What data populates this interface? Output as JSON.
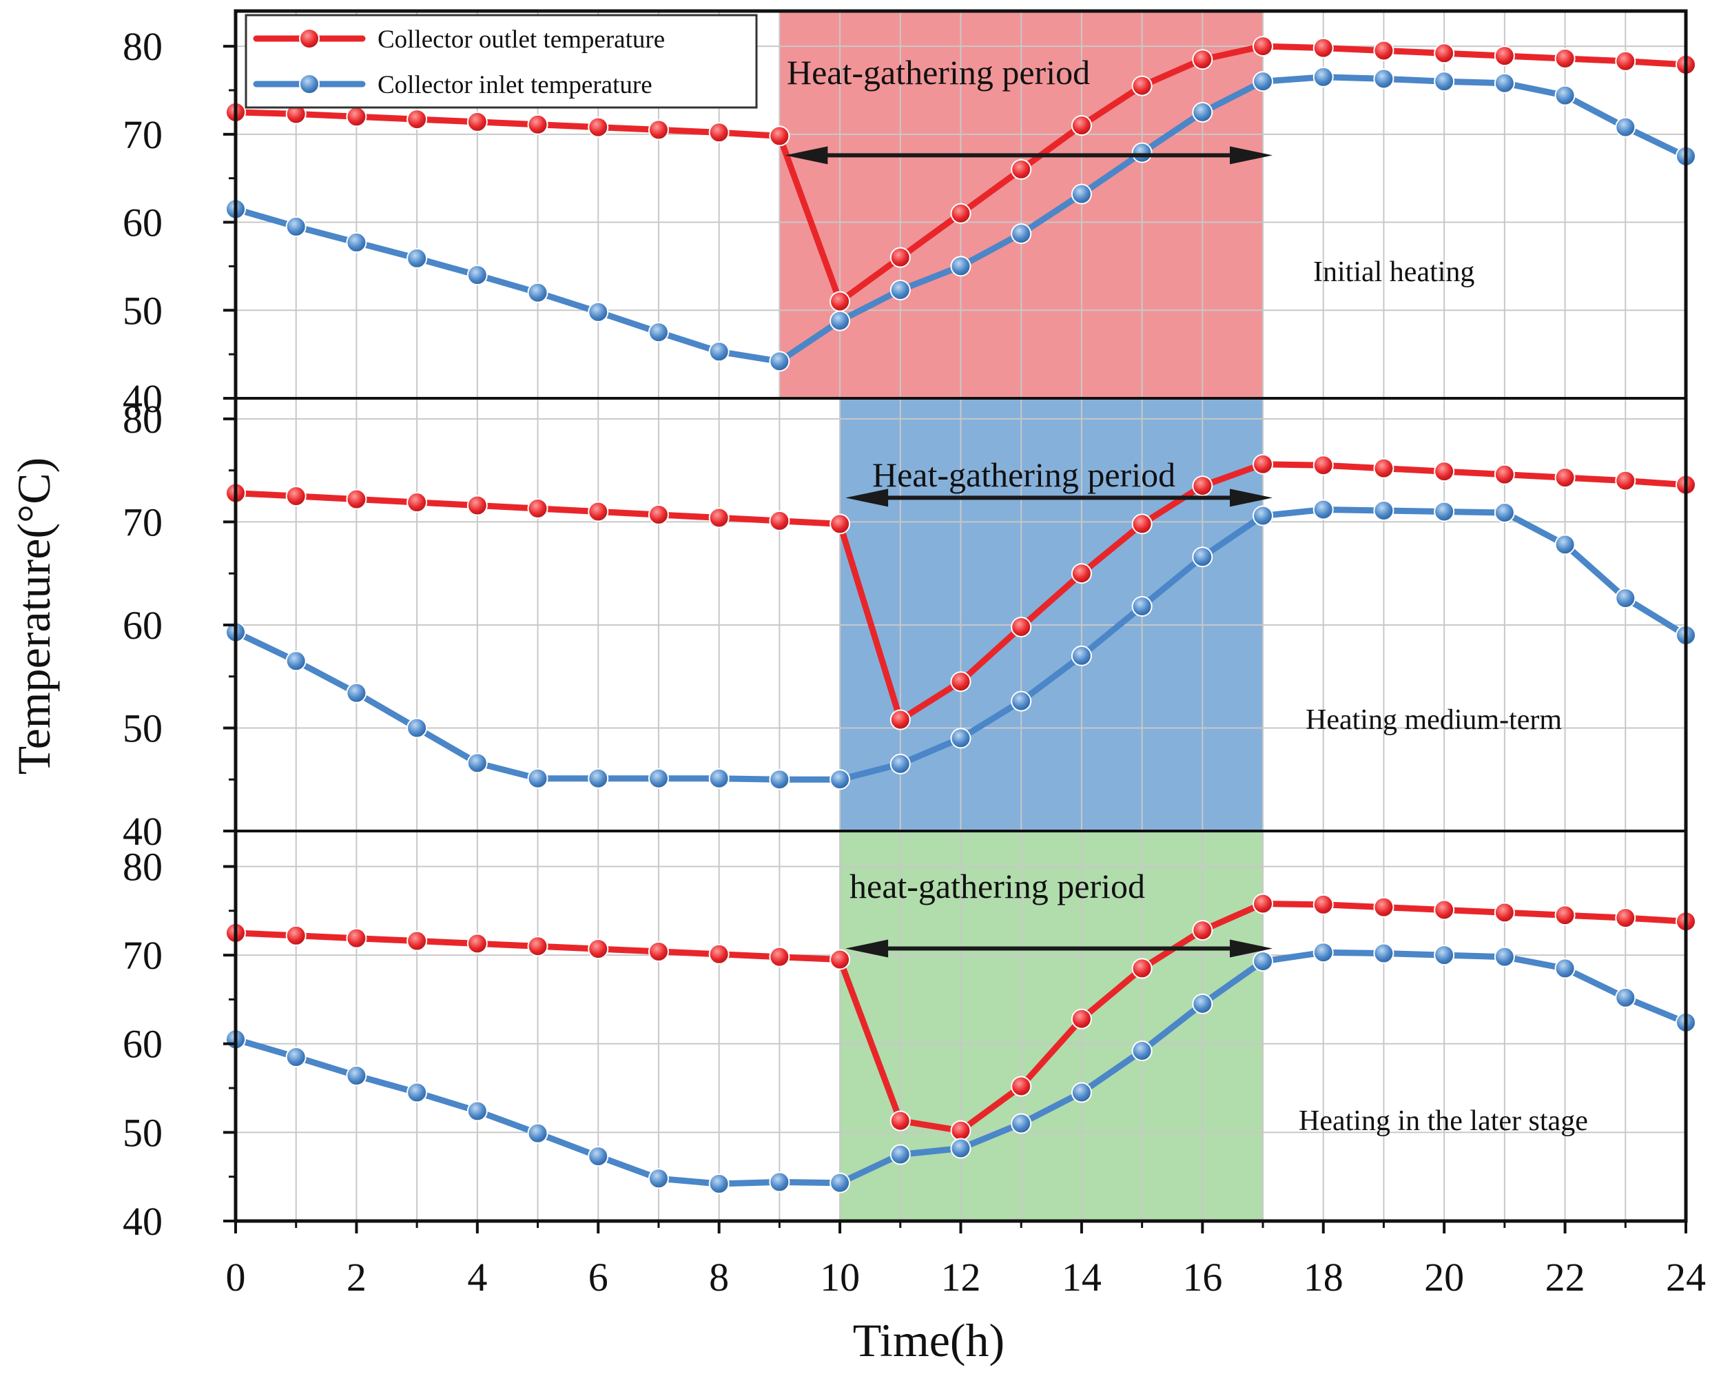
{
  "chart_data": {
    "type": "line",
    "xlabel": "Time(h)",
    "ylabel": "Temperature(°C)",
    "xlim": [
      0,
      24
    ],
    "x_ticks": [
      "0",
      "2",
      "4",
      "6",
      "8",
      "10",
      "12",
      "14",
      "16",
      "18",
      "20",
      "22",
      "24"
    ],
    "grid": true,
    "legend": {
      "placement": "top-left",
      "entries": [
        {
          "name": "Collector outlet temperature",
          "color": "#e8262a"
        },
        {
          "name": "Collector inlet temperature",
          "color": "#4a86c8"
        }
      ]
    },
    "x": [
      0,
      1,
      2,
      3,
      4,
      5,
      6,
      7,
      8,
      9,
      10,
      11,
      12,
      13,
      14,
      15,
      16,
      17,
      18,
      19,
      20,
      21,
      22,
      23,
      24
    ],
    "panels": [
      {
        "label": "Initial heating",
        "ylim": [
          40,
          84
        ],
        "y_ticks": [
          "40",
          "50",
          "60",
          "70",
          "80"
        ],
        "period": {
          "start": 9,
          "end": 17,
          "label": "Heat-gathering period",
          "color": "#ee7d80"
        },
        "series": [
          {
            "name": "Collector outlet temperature",
            "values": [
              72.5,
              72.3,
              72.0,
              71.7,
              71.4,
              71.1,
              70.8,
              70.5,
              70.2,
              69.8,
              51.0,
              56.0,
              61.0,
              66.0,
              71.0,
              75.5,
              78.5,
              80.0,
              79.8,
              79.5,
              79.2,
              78.9,
              78.6,
              78.3,
              77.9
            ]
          },
          {
            "name": "Collector inlet temperature",
            "values": [
              61.5,
              59.5,
              57.7,
              55.9,
              54.0,
              52.0,
              49.8,
              47.5,
              45.3,
              44.2,
              48.8,
              52.3,
              55.0,
              58.7,
              63.2,
              67.9,
              72.5,
              76.0,
              76.5,
              76.3,
              76.0,
              75.8,
              74.4,
              70.8,
              67.5
            ]
          }
        ]
      },
      {
        "label": "Heating medium-term",
        "ylim": [
          40,
          82
        ],
        "y_ticks": [
          "40",
          "50",
          "60",
          "70",
          "80"
        ],
        "period": {
          "start": 10,
          "end": 17,
          "label": "Heat-gathering period",
          "color": "#6a9fd2"
        },
        "series": [
          {
            "name": "Collector outlet temperature",
            "values": [
              72.8,
              72.5,
              72.2,
              71.9,
              71.6,
              71.3,
              71.0,
              70.7,
              70.4,
              70.1,
              69.8,
              50.8,
              54.5,
              59.8,
              65.0,
              69.8,
              73.5,
              75.6,
              75.5,
              75.2,
              74.9,
              74.6,
              74.3,
              74.0,
              73.6
            ]
          },
          {
            "name": "Collector inlet temperature",
            "values": [
              59.3,
              56.5,
              53.4,
              50.0,
              46.6,
              45.1,
              45.1,
              45.1,
              45.1,
              45.0,
              45.0,
              46.5,
              49.0,
              52.6,
              57.0,
              61.8,
              66.6,
              70.6,
              71.2,
              71.1,
              71.0,
              70.9,
              67.8,
              62.6,
              59.0
            ]
          }
        ]
      },
      {
        "label": "Heating in the later stage",
        "ylim": [
          40,
          84
        ],
        "y_ticks": [
          "40",
          "50",
          "60",
          "70",
          "80"
        ],
        "period": {
          "start": 10,
          "end": 17,
          "label": "heat-gathering period",
          "color": "#a0d49a"
        },
        "series": [
          {
            "name": "Collector outlet temperature",
            "values": [
              72.5,
              72.2,
              71.9,
              71.6,
              71.3,
              71.0,
              70.7,
              70.4,
              70.1,
              69.8,
              69.5,
              51.3,
              50.2,
              55.2,
              62.8,
              68.5,
              72.8,
              75.8,
              75.7,
              75.4,
              75.1,
              74.8,
              74.5,
              74.2,
              73.8
            ]
          },
          {
            "name": "Collector inlet temperature",
            "values": [
              60.5,
              58.5,
              56.4,
              54.5,
              52.4,
              49.9,
              47.3,
              44.8,
              44.2,
              44.4,
              44.3,
              47.5,
              48.2,
              51.0,
              54.5,
              59.2,
              64.5,
              69.3,
              70.3,
              70.2,
              70.0,
              69.8,
              68.5,
              65.2,
              62.4
            ]
          }
        ]
      }
    ]
  }
}
